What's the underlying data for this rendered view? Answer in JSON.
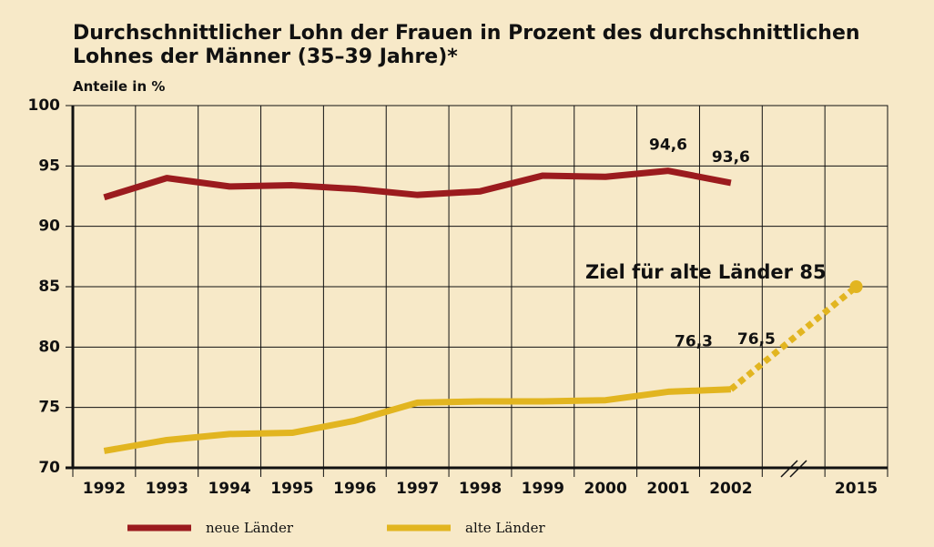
{
  "chart_data": {
    "type": "line",
    "title": "Durchschnittlicher Lohn der Frauen in Prozent des durchschnittlichen Lohnes der Männer (35–39 Jahre)*",
    "subtitle": "Anteile in %",
    "categories": [
      "1992",
      "1993",
      "1994",
      "1995",
      "1996",
      "1997",
      "1998",
      "1999",
      "2000",
      "2001",
      "2002",
      null,
      "2015"
    ],
    "series": [
      {
        "name": "neue Länder",
        "color": "#9b1b1e",
        "values": [
          92.4,
          94.0,
          93.3,
          93.4,
          93.1,
          92.6,
          92.9,
          94.2,
          94.1,
          94.6,
          93.6,
          null,
          null
        ],
        "value_labels": [
          null,
          null,
          null,
          null,
          null,
          null,
          null,
          null,
          null,
          "94,6",
          "93,6",
          null,
          null
        ]
      },
      {
        "name": "alte Länder",
        "color": "#e2b520",
        "values": [
          71.4,
          72.3,
          72.8,
          72.9,
          73.9,
          75.4,
          75.5,
          75.5,
          75.6,
          76.3,
          76.5,
          null,
          85
        ],
        "value_labels": [
          null,
          null,
          null,
          null,
          null,
          null,
          null,
          null,
          null,
          "76,3",
          "76,5",
          null,
          null
        ]
      }
    ],
    "annotations": [
      "Ziel für alte Länder 85"
    ],
    "ylim": [
      70,
      100
    ],
    "yticks": [
      70,
      75,
      80,
      85,
      90,
      95,
      100
    ],
    "grid": true
  }
}
